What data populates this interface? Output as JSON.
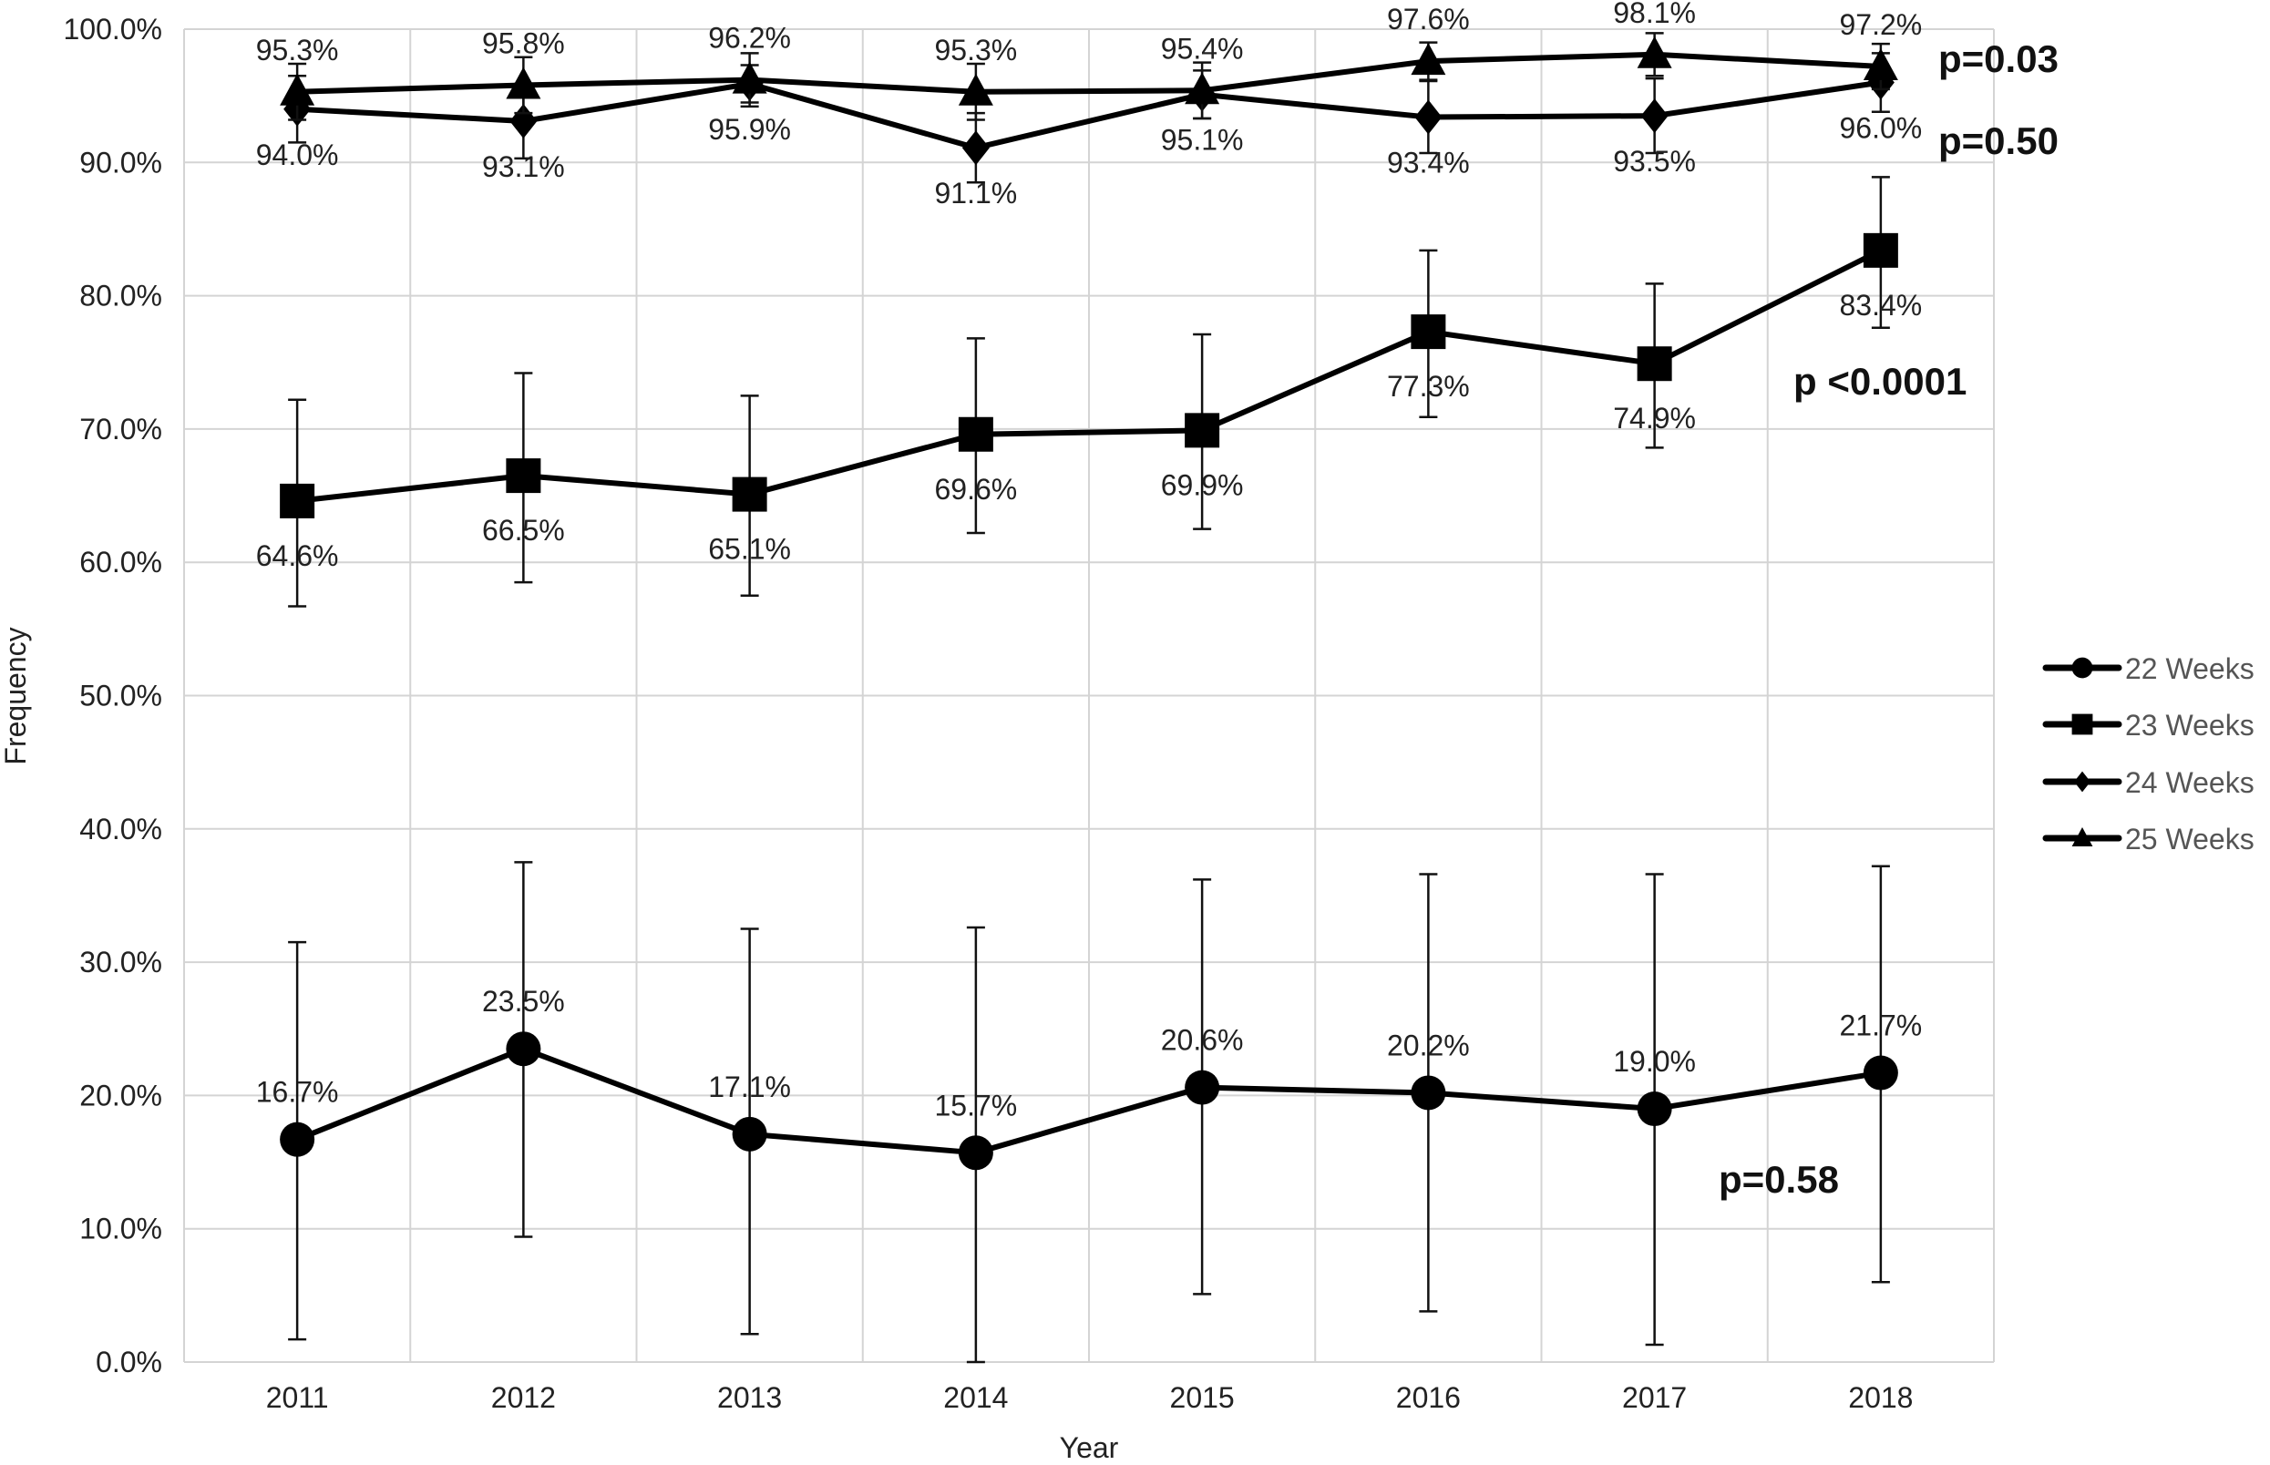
{
  "chart_data": {
    "type": "line",
    "title": "",
    "xlabel": "Year",
    "ylabel": "Frequency",
    "ylim": [
      0,
      100
    ],
    "yticks": [
      "0.0%",
      "10.0%",
      "20.0%",
      "30.0%",
      "40.0%",
      "50.0%",
      "60.0%",
      "70.0%",
      "80.0%",
      "90.0%",
      "100.0%"
    ],
    "categories": [
      "2011",
      "2012",
      "2013",
      "2014",
      "2015",
      "2016",
      "2017",
      "2018"
    ],
    "grid": true,
    "legend_position": "right",
    "series": [
      {
        "name": "22 Weeks",
        "marker": "circle",
        "label_pos": "above",
        "values": [
          16.7,
          23.5,
          17.1,
          15.7,
          20.6,
          20.2,
          19.0,
          21.7
        ],
        "labels": [
          "16.7%",
          "23.5%",
          "17.1%",
          "15.7%",
          "20.6%",
          "20.2%",
          "19.0%",
          "21.7%"
        ],
        "err_low": [
          1.7,
          9.4,
          2.1,
          0.0,
          5.1,
          3.8,
          1.3,
          6.0
        ],
        "err_high": [
          31.5,
          37.5,
          32.5,
          32.6,
          36.2,
          36.6,
          36.6,
          37.2
        ],
        "p_value": "p=0.58"
      },
      {
        "name": "23 Weeks",
        "marker": "square",
        "label_pos": "below",
        "values": [
          64.6,
          66.5,
          65.1,
          69.6,
          69.9,
          77.3,
          74.9,
          83.4
        ],
        "labels": [
          "64.6%",
          "66.5%",
          "65.1%",
          "69.6%",
          "69.9%",
          "77.3%",
          "74.9%",
          "83.4%"
        ],
        "err_low": [
          56.7,
          58.5,
          57.5,
          62.2,
          62.5,
          70.9,
          68.6,
          77.6
        ],
        "err_high": [
          72.2,
          74.2,
          72.5,
          76.8,
          77.1,
          83.4,
          80.9,
          88.9
        ],
        "p_value": "p <0.0001"
      },
      {
        "name": "24 Weeks",
        "marker": "diamond",
        "label_pos": "below",
        "values": [
          94.0,
          93.1,
          95.9,
          91.1,
          95.1,
          93.4,
          93.5,
          96.0
        ],
        "labels": [
          "94.0%",
          "93.1%",
          "95.9%",
          "91.1%",
          "95.1%",
          "93.4%",
          "93.5%",
          "96.0%"
        ],
        "err_low": [
          91.5,
          90.3,
          94.5,
          88.5,
          93.3,
          90.7,
          90.7,
          93.8
        ],
        "err_high": [
          96.5,
          95.9,
          97.3,
          93.7,
          96.9,
          96.1,
          96.3,
          98.2
        ],
        "p_value": "p=0.50"
      },
      {
        "name": "25 Weeks",
        "marker": "triangle",
        "label_pos": "above",
        "values": [
          95.3,
          95.8,
          96.2,
          95.3,
          95.4,
          97.6,
          98.1,
          97.2
        ],
        "labels": [
          "95.3%",
          "95.8%",
          "96.2%",
          "95.3%",
          "95.4%",
          "97.6%",
          "98.1%",
          "97.2%"
        ],
        "err_low": [
          93.2,
          93.7,
          94.2,
          93.2,
          93.3,
          96.2,
          96.5,
          95.5
        ],
        "err_high": [
          97.4,
          97.9,
          98.2,
          97.4,
          97.5,
          99.0,
          99.7,
          98.9
        ],
        "p_value": "p=0.03"
      }
    ]
  }
}
